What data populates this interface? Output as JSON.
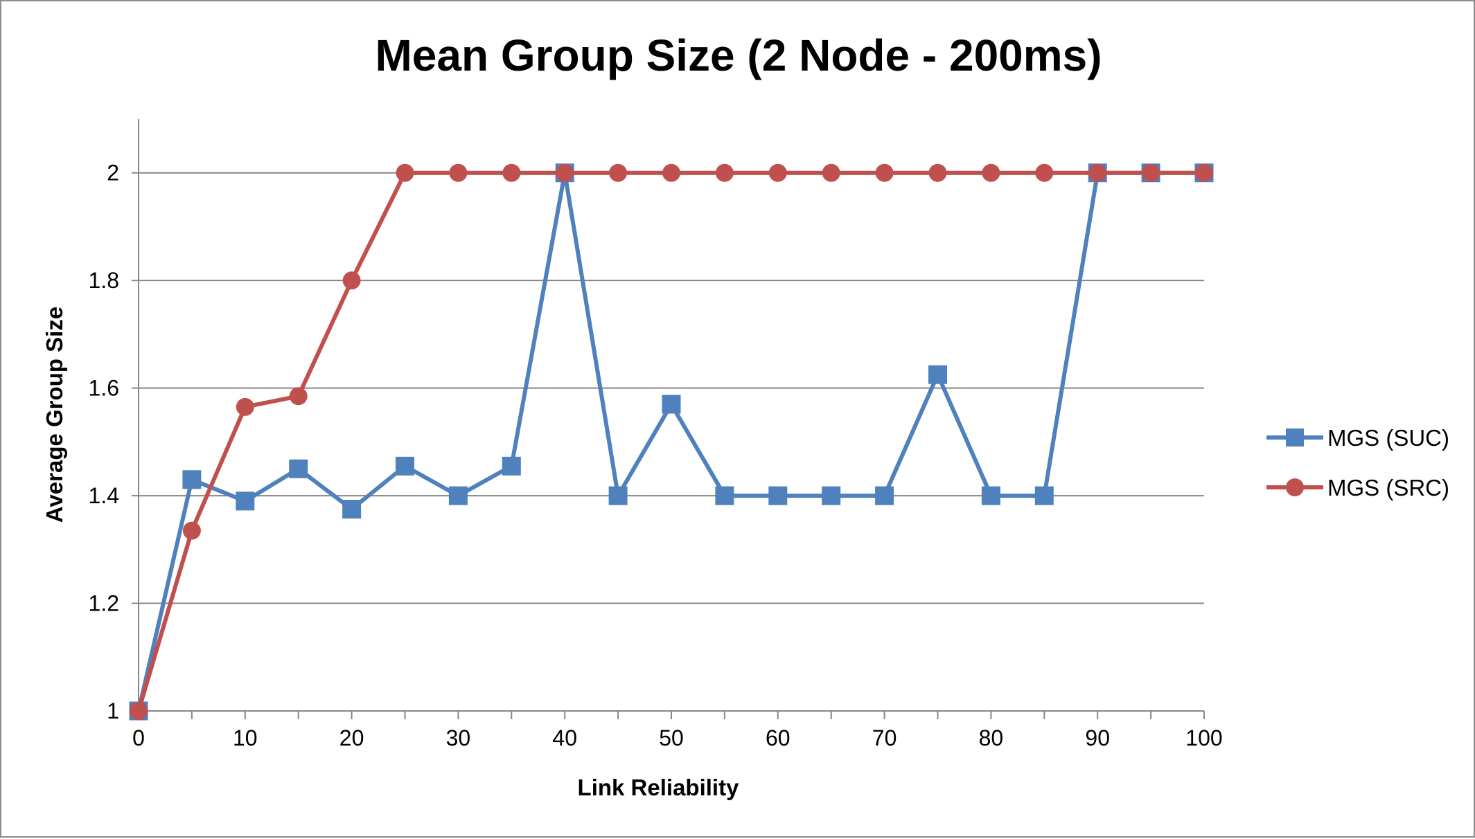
{
  "chart_data": {
    "type": "line",
    "title": "Mean Group Size (2 Node - 200ms)",
    "xlabel": "Link Reliability",
    "ylabel": "Average Group Size",
    "x": [
      0,
      5,
      10,
      15,
      20,
      25,
      30,
      35,
      40,
      45,
      50,
      55,
      60,
      65,
      70,
      75,
      80,
      85,
      90,
      95,
      100
    ],
    "xlim": [
      0,
      100
    ],
    "ylim": [
      1,
      2.1
    ],
    "x_ticks": [
      "0",
      "10",
      "20",
      "30",
      "40",
      "50",
      "60",
      "70",
      "80",
      "90",
      "100"
    ],
    "y_ticks": [
      "1",
      "1.2",
      "1.4",
      "1.6",
      "1.8",
      "2"
    ],
    "grid": "horizontal",
    "legend_position": "right",
    "series": [
      {
        "name": "MGS (SUC)",
        "color": "#4f81bd",
        "marker": "square",
        "values": [
          1.0,
          1.43,
          1.39,
          1.45,
          1.375,
          1.455,
          1.4,
          1.455,
          2.0,
          1.4,
          1.57,
          1.4,
          1.4,
          1.4,
          1.4,
          1.625,
          1.4,
          1.4,
          2.0,
          2.0,
          2.0
        ]
      },
      {
        "name": "MGS (SRC)",
        "color": "#c0504d",
        "marker": "circle",
        "values": [
          1.0,
          1.335,
          1.565,
          1.585,
          1.8,
          2.0,
          2.0,
          2.0,
          2.0,
          2.0,
          2.0,
          2.0,
          2.0,
          2.0,
          2.0,
          2.0,
          2.0,
          2.0,
          2.0,
          2.0,
          2.0
        ]
      }
    ]
  }
}
